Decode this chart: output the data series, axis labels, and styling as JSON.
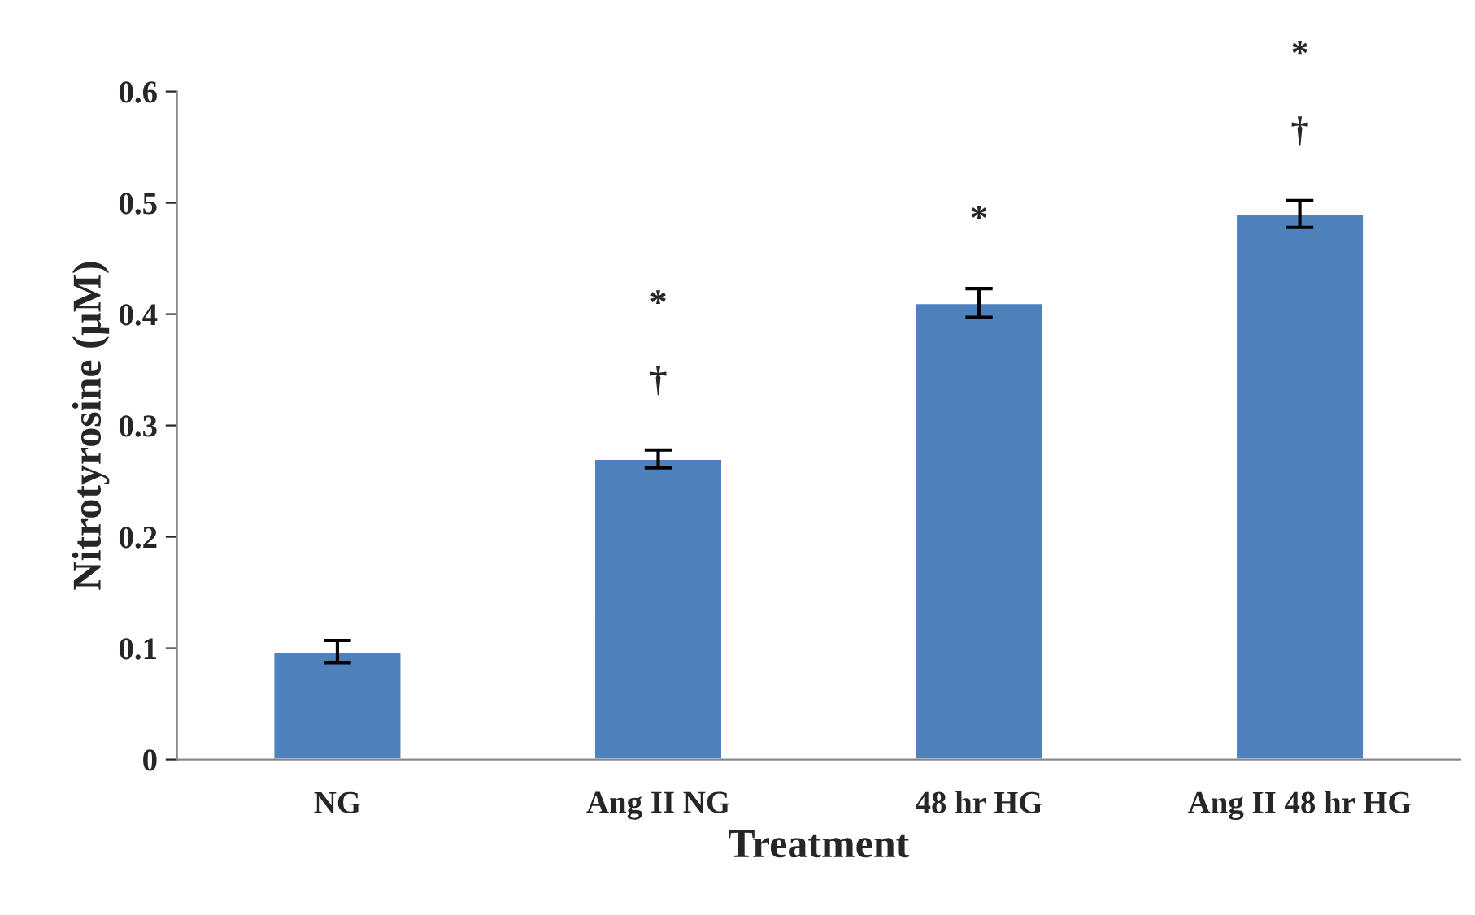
{
  "chart_data": {
    "type": "bar",
    "xlabel": "Treatment",
    "ylabel": "Nitrotyrosine (µM)",
    "categories": [
      "NG",
      "Ang II NG",
      "48 hr HG",
      "Ang II 48 hr HG"
    ],
    "values": [
      0.097,
      0.27,
      0.41,
      0.49
    ],
    "errors": [
      0.01,
      0.008,
      0.013,
      0.012
    ],
    "color": "#4f81bd",
    "ylim": [
      0,
      0.6
    ],
    "yticks": [
      0,
      0.1,
      0.2,
      0.3,
      0.4,
      0.5,
      0.6
    ],
    "grid": false,
    "legend": false,
    "annotations": [
      "*",
      "†",
      "*",
      "*",
      "†"
    ]
  }
}
